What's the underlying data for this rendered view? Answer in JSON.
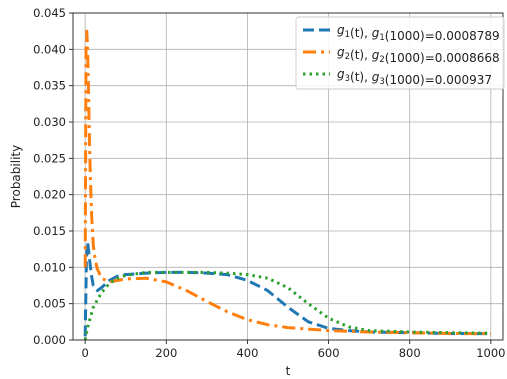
{
  "chart_data": {
    "type": "line",
    "xlabel": "t",
    "ylabel": "Probability",
    "xlim": [
      -30,
      1030
    ],
    "ylim": [
      0,
      0.045
    ],
    "xticks": [
      0,
      200,
      400,
      600,
      800,
      1000
    ],
    "xtick_labels": [
      "0",
      "200",
      "400",
      "600",
      "800",
      "1000"
    ],
    "yticks": [
      0,
      0.005,
      0.01,
      0.015,
      0.02,
      0.025,
      0.03,
      0.035,
      0.04,
      0.045
    ],
    "ytick_labels": [
      "0.000",
      "0.005",
      "0.010",
      "0.015",
      "0.020",
      "0.025",
      "0.030",
      "0.035",
      "0.040",
      "0.045"
    ],
    "grid": true,
    "legend_position": "top-right",
    "series": [
      {
        "legend_parts": [
          [
            "g",
            "1"
          ],
          "(t), ",
          [
            "g",
            "1"
          ],
          "(1000)=0.0008789"
        ],
        "color": "#1f77b4",
        "style": "dashed",
        "x": [
          0,
          3,
          6,
          10,
          15,
          20,
          30,
          40,
          60,
          80,
          100,
          150,
          200,
          250,
          300,
          350,
          400,
          450,
          500,
          550,
          600,
          650,
          700,
          800,
          900,
          1000
        ],
        "y": [
          0.0005,
          0.011,
          0.0135,
          0.0115,
          0.009,
          0.0075,
          0.0068,
          0.0072,
          0.0082,
          0.0088,
          0.009,
          0.0092,
          0.0093,
          0.0093,
          0.0092,
          0.009,
          0.0082,
          0.0068,
          0.0045,
          0.0025,
          0.0016,
          0.0013,
          0.0011,
          0.001,
          0.0009,
          0.0008789
        ]
      },
      {
        "legend_parts": [
          [
            "g",
            "2"
          ],
          "(t), ",
          [
            "g",
            "2"
          ],
          "(1000)=0.0008668"
        ],
        "color": "#ff7f0e",
        "style": "dashdot",
        "x": [
          0,
          2,
          4,
          6,
          8,
          10,
          13,
          16,
          20,
          25,
          30,
          40,
          60,
          80,
          100,
          150,
          200,
          250,
          300,
          350,
          400,
          450,
          500,
          550,
          600,
          700,
          800,
          900,
          1000
        ],
        "y": [
          0.01,
          0.04,
          0.0425,
          0.04,
          0.035,
          0.029,
          0.022,
          0.017,
          0.013,
          0.011,
          0.0098,
          0.0085,
          0.008,
          0.0082,
          0.0084,
          0.0085,
          0.008,
          0.0068,
          0.0053,
          0.0039,
          0.0028,
          0.0021,
          0.0017,
          0.0015,
          0.0013,
          0.0011,
          0.001,
          0.0009,
          0.0008668
        ]
      },
      {
        "legend_parts": [
          [
            "g",
            "3"
          ],
          "(t), ",
          [
            "g",
            "3"
          ],
          "(1000)=0.000937"
        ],
        "color": "#2ca02c",
        "style": "dotted",
        "x": [
          0,
          5,
          10,
          20,
          40,
          60,
          80,
          100,
          150,
          200,
          250,
          300,
          350,
          400,
          450,
          500,
          550,
          600,
          650,
          700,
          800,
          900,
          1000
        ],
        "y": [
          0.0,
          0.0015,
          0.0025,
          0.0045,
          0.0065,
          0.0078,
          0.0085,
          0.0089,
          0.0093,
          0.0093,
          0.0093,
          0.0093,
          0.0092,
          0.009,
          0.0085,
          0.0072,
          0.005,
          0.003,
          0.0018,
          0.0013,
          0.0011,
          0.001,
          0.000937
        ]
      }
    ]
  }
}
